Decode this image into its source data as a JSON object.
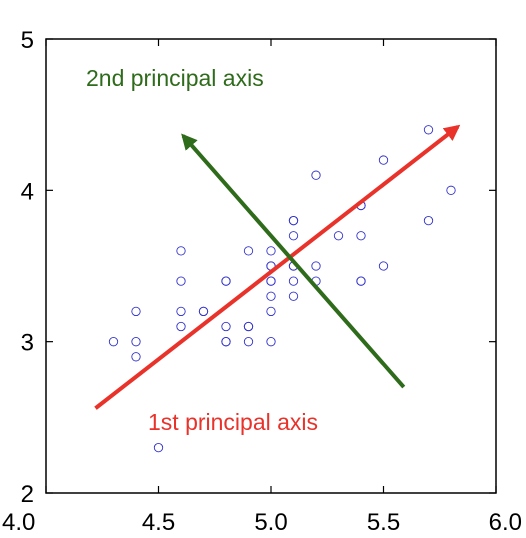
{
  "chart_data": {
    "type": "scatter",
    "title": "",
    "xlabel": "",
    "ylabel": "",
    "xlim": [
      4.0,
      6.0
    ],
    "ylim": [
      2.0,
      5.0
    ],
    "xticks": [
      "4.0",
      "4.5",
      "5.0",
      "5.5",
      "6.0"
    ],
    "yticks": [
      "2",
      "3",
      "4",
      "5"
    ],
    "xtick_values": [
      4.0,
      4.5,
      5.0,
      5.5,
      6.0
    ],
    "ytick_values": [
      2,
      3,
      4,
      5
    ],
    "grid": false,
    "marker_color": "#3333cc",
    "points": [
      [
        4.3,
        3.0
      ],
      [
        4.4,
        2.9
      ],
      [
        4.4,
        3.0
      ],
      [
        4.4,
        3.2
      ],
      [
        4.5,
        2.3
      ],
      [
        4.6,
        3.1
      ],
      [
        4.6,
        3.2
      ],
      [
        4.6,
        3.4
      ],
      [
        4.6,
        3.6
      ],
      [
        4.7,
        3.2
      ],
      [
        4.7,
        3.2
      ],
      [
        4.8,
        3.0
      ],
      [
        4.8,
        3.0
      ],
      [
        4.8,
        3.1
      ],
      [
        4.8,
        3.4
      ],
      [
        4.8,
        3.4
      ],
      [
        4.9,
        3.0
      ],
      [
        4.9,
        3.1
      ],
      [
        4.9,
        3.1
      ],
      [
        4.9,
        3.6
      ],
      [
        5.0,
        3.0
      ],
      [
        5.0,
        3.2
      ],
      [
        5.0,
        3.3
      ],
      [
        5.0,
        3.4
      ],
      [
        5.0,
        3.4
      ],
      [
        5.0,
        3.5
      ],
      [
        5.0,
        3.5
      ],
      [
        5.0,
        3.6
      ],
      [
        5.1,
        3.3
      ],
      [
        5.1,
        3.4
      ],
      [
        5.1,
        3.5
      ],
      [
        5.1,
        3.5
      ],
      [
        5.1,
        3.7
      ],
      [
        5.1,
        3.8
      ],
      [
        5.1,
        3.8
      ],
      [
        5.2,
        3.4
      ],
      [
        5.2,
        3.5
      ],
      [
        5.2,
        4.1
      ],
      [
        5.3,
        3.7
      ],
      [
        5.4,
        3.4
      ],
      [
        5.4,
        3.4
      ],
      [
        5.4,
        3.7
      ],
      [
        5.4,
        3.9
      ],
      [
        5.4,
        3.9
      ],
      [
        5.5,
        3.5
      ],
      [
        5.5,
        4.2
      ],
      [
        5.7,
        3.8
      ],
      [
        5.7,
        4.4
      ],
      [
        5.8,
        4.0
      ]
    ],
    "axes": [
      {
        "label": "1st principal axis",
        "color": "#e8322a",
        "from": [
          4.22,
          2.56
        ],
        "to": [
          5.83,
          4.42
        ]
      },
      {
        "label": "2nd principal axis",
        "color": "#2e6b1a",
        "from": [
          5.59,
          2.7
        ],
        "to": [
          4.61,
          4.36
        ]
      }
    ]
  }
}
